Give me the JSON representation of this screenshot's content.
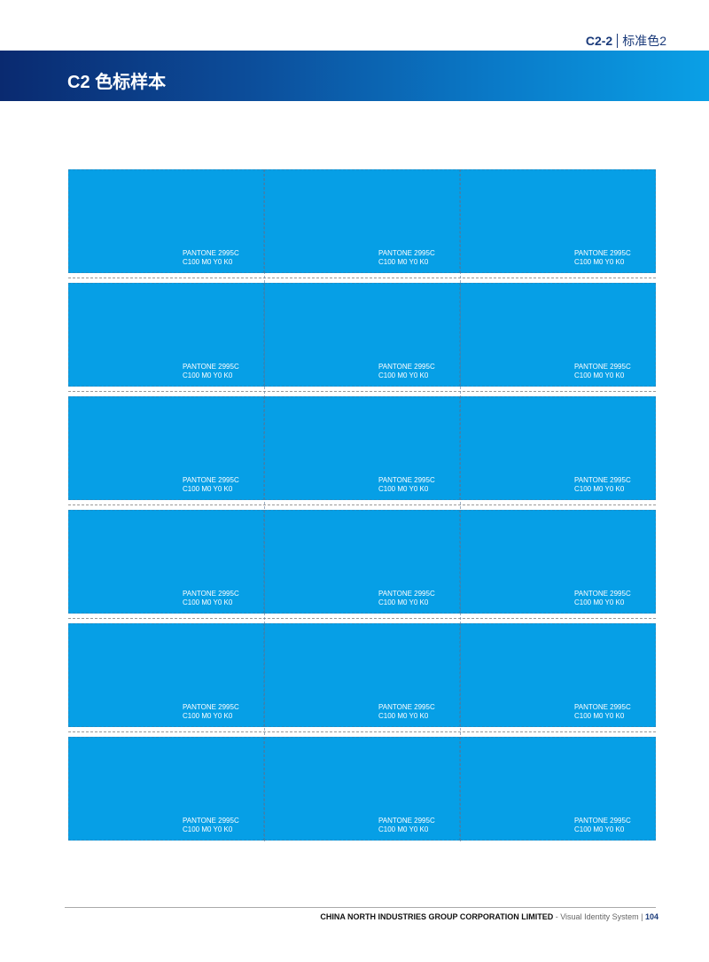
{
  "header": {
    "section_code": "C2-2",
    "section_name": "标准色2",
    "title": "C2 色标样本"
  },
  "brand_colors": {
    "banner_dark": "#0a2a70",
    "banner_light": "#0aa0e6",
    "swatch": "#069fe6"
  },
  "swatches": [
    [
      {
        "name": "PANTONE 2995C",
        "cmyk": "C100 M0 Y0 K0"
      },
      {
        "name": "PANTONE 2995C",
        "cmyk": "C100 M0 Y0 K0"
      },
      {
        "name": "PANTONE 2995C",
        "cmyk": "C100 M0 Y0 K0"
      }
    ],
    [
      {
        "name": "PANTONE 2995C",
        "cmyk": "C100 M0 Y0 K0"
      },
      {
        "name": "PANTONE 2995C",
        "cmyk": "C100 M0 Y0 K0"
      },
      {
        "name": "PANTONE 2995C",
        "cmyk": "C100 M0 Y0 K0"
      }
    ],
    [
      {
        "name": "PANTONE 2995C",
        "cmyk": "C100 M0 Y0 K0"
      },
      {
        "name": "PANTONE 2995C",
        "cmyk": "C100 M0 Y0 K0"
      },
      {
        "name": "PANTONE 2995C",
        "cmyk": "C100 M0 Y0 K0"
      }
    ],
    [
      {
        "name": "PANTONE 2995C",
        "cmyk": "C100 M0 Y0 K0"
      },
      {
        "name": "PANTONE 2995C",
        "cmyk": "C100 M0 Y0 K0"
      },
      {
        "name": "PANTONE 2995C",
        "cmyk": "C100 M0 Y0 K0"
      }
    ],
    [
      {
        "name": "PANTONE 2995C",
        "cmyk": "C100 M0 Y0 K0"
      },
      {
        "name": "PANTONE 2995C",
        "cmyk": "C100 M0 Y0 K0"
      },
      {
        "name": "PANTONE 2995C",
        "cmyk": "C100 M0 Y0 K0"
      }
    ],
    [
      {
        "name": "PANTONE 2995C",
        "cmyk": "C100 M0 Y0 K0"
      },
      {
        "name": "PANTONE 2995C",
        "cmyk": "C100 M0 Y0 K0"
      },
      {
        "name": "PANTONE 2995C",
        "cmyk": "C100 M0 Y0 K0"
      }
    ]
  ],
  "footer": {
    "company": "CHINA NORTH INDUSTRIES GROUP CORPORATION LIMITED",
    "system": "- Visual Identity System",
    "divider": "|",
    "page": "104"
  }
}
